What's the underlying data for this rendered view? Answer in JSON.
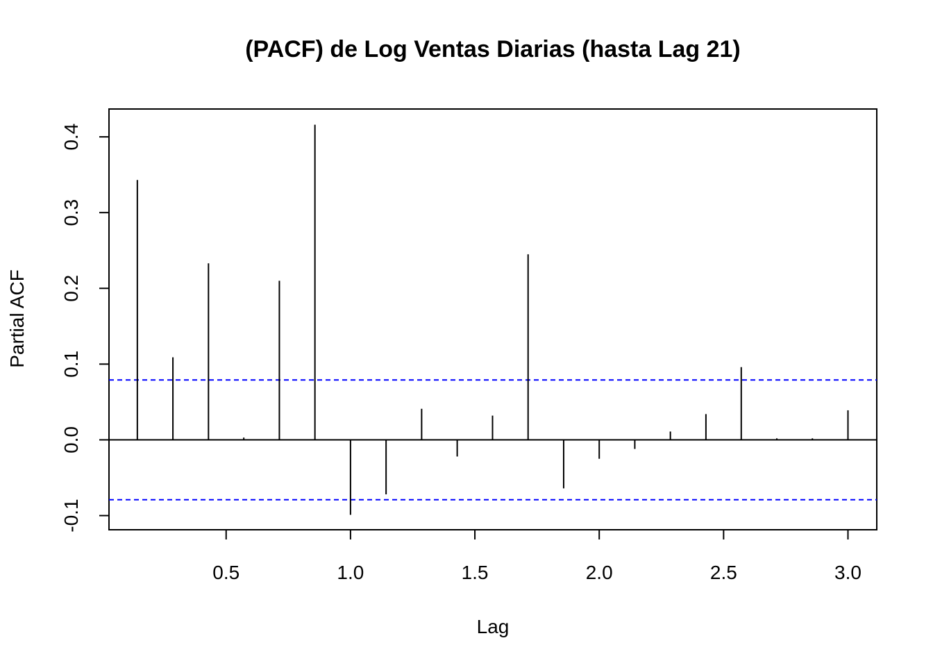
{
  "chart_data": {
    "type": "bar",
    "title": "(PACF) de Log Ventas Diarias (hasta Lag 21)",
    "xlabel": "Lag",
    "ylabel": "Partial ACF",
    "xlim": [
      0.1,
      3.1
    ],
    "ylim": [
      -0.1,
      0.4
    ],
    "x_ticks": [
      "0.5",
      "1.0",
      "1.5",
      "2.0",
      "2.5",
      "3.0"
    ],
    "y_ticks": [
      "-0.1",
      "0.0",
      "0.1",
      "0.2",
      "0.3",
      "0.4"
    ],
    "confidence_bound": 0.079,
    "bound_color": "#0000ff",
    "bar_color": "#000000",
    "grid": false,
    "lags": [
      0.143,
      0.286,
      0.429,
      0.571,
      0.714,
      0.857,
      1.0,
      1.143,
      1.286,
      1.429,
      1.571,
      1.714,
      1.857,
      2.0,
      2.143,
      2.286,
      2.429,
      2.571,
      2.714,
      2.857,
      3.0
    ],
    "values": [
      0.343,
      0.109,
      0.233,
      0.003,
      0.21,
      0.416,
      -0.099,
      -0.072,
      0.041,
      -0.022,
      0.032,
      0.245,
      -0.064,
      -0.025,
      -0.012,
      0.011,
      0.034,
      0.096,
      0.002,
      0.002,
      0.039
    ]
  }
}
